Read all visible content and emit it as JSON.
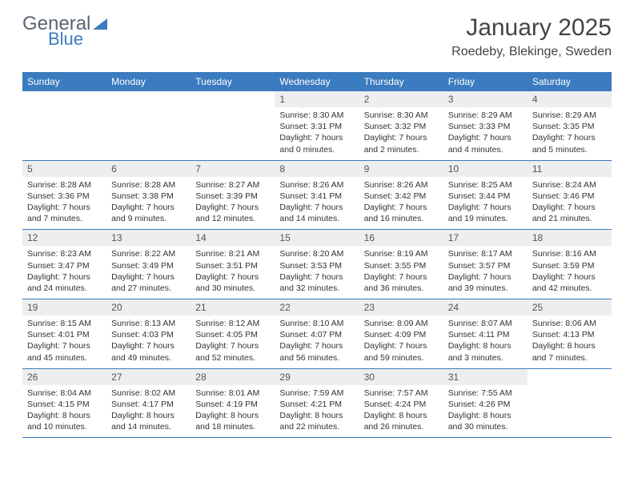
{
  "brand": {
    "part1": "General",
    "part2": "Blue"
  },
  "title": "January 2025",
  "location": "Roedeby, Blekinge, Sweden",
  "colors": {
    "header_bg": "#3b7bbf",
    "header_text": "#ffffff",
    "daynum_bg": "#eceeef",
    "border": "#3b7bbf",
    "text": "#333333",
    "logo_gray": "#5a6570",
    "logo_blue": "#3b7bbf"
  },
  "weekdays": [
    "Sunday",
    "Monday",
    "Tuesday",
    "Wednesday",
    "Thursday",
    "Friday",
    "Saturday"
  ],
  "weeks": [
    [
      null,
      null,
      null,
      {
        "n": "1",
        "sr": "8:30 AM",
        "ss": "3:31 PM",
        "dl": "7 hours and 0 minutes."
      },
      {
        "n": "2",
        "sr": "8:30 AM",
        "ss": "3:32 PM",
        "dl": "7 hours and 2 minutes."
      },
      {
        "n": "3",
        "sr": "8:29 AM",
        "ss": "3:33 PM",
        "dl": "7 hours and 4 minutes."
      },
      {
        "n": "4",
        "sr": "8:29 AM",
        "ss": "3:35 PM",
        "dl": "7 hours and 5 minutes."
      }
    ],
    [
      {
        "n": "5",
        "sr": "8:28 AM",
        "ss": "3:36 PM",
        "dl": "7 hours and 7 minutes."
      },
      {
        "n": "6",
        "sr": "8:28 AM",
        "ss": "3:38 PM",
        "dl": "7 hours and 9 minutes."
      },
      {
        "n": "7",
        "sr": "8:27 AM",
        "ss": "3:39 PM",
        "dl": "7 hours and 12 minutes."
      },
      {
        "n": "8",
        "sr": "8:26 AM",
        "ss": "3:41 PM",
        "dl": "7 hours and 14 minutes."
      },
      {
        "n": "9",
        "sr": "8:26 AM",
        "ss": "3:42 PM",
        "dl": "7 hours and 16 minutes."
      },
      {
        "n": "10",
        "sr": "8:25 AM",
        "ss": "3:44 PM",
        "dl": "7 hours and 19 minutes."
      },
      {
        "n": "11",
        "sr": "8:24 AM",
        "ss": "3:46 PM",
        "dl": "7 hours and 21 minutes."
      }
    ],
    [
      {
        "n": "12",
        "sr": "8:23 AM",
        "ss": "3:47 PM",
        "dl": "7 hours and 24 minutes."
      },
      {
        "n": "13",
        "sr": "8:22 AM",
        "ss": "3:49 PM",
        "dl": "7 hours and 27 minutes."
      },
      {
        "n": "14",
        "sr": "8:21 AM",
        "ss": "3:51 PM",
        "dl": "7 hours and 30 minutes."
      },
      {
        "n": "15",
        "sr": "8:20 AM",
        "ss": "3:53 PM",
        "dl": "7 hours and 32 minutes."
      },
      {
        "n": "16",
        "sr": "8:19 AM",
        "ss": "3:55 PM",
        "dl": "7 hours and 36 minutes."
      },
      {
        "n": "17",
        "sr": "8:17 AM",
        "ss": "3:57 PM",
        "dl": "7 hours and 39 minutes."
      },
      {
        "n": "18",
        "sr": "8:16 AM",
        "ss": "3:59 PM",
        "dl": "7 hours and 42 minutes."
      }
    ],
    [
      {
        "n": "19",
        "sr": "8:15 AM",
        "ss": "4:01 PM",
        "dl": "7 hours and 45 minutes."
      },
      {
        "n": "20",
        "sr": "8:13 AM",
        "ss": "4:03 PM",
        "dl": "7 hours and 49 minutes."
      },
      {
        "n": "21",
        "sr": "8:12 AM",
        "ss": "4:05 PM",
        "dl": "7 hours and 52 minutes."
      },
      {
        "n": "22",
        "sr": "8:10 AM",
        "ss": "4:07 PM",
        "dl": "7 hours and 56 minutes."
      },
      {
        "n": "23",
        "sr": "8:09 AM",
        "ss": "4:09 PM",
        "dl": "7 hours and 59 minutes."
      },
      {
        "n": "24",
        "sr": "8:07 AM",
        "ss": "4:11 PM",
        "dl": "8 hours and 3 minutes."
      },
      {
        "n": "25",
        "sr": "8:06 AM",
        "ss": "4:13 PM",
        "dl": "8 hours and 7 minutes."
      }
    ],
    [
      {
        "n": "26",
        "sr": "8:04 AM",
        "ss": "4:15 PM",
        "dl": "8 hours and 10 minutes."
      },
      {
        "n": "27",
        "sr": "8:02 AM",
        "ss": "4:17 PM",
        "dl": "8 hours and 14 minutes."
      },
      {
        "n": "28",
        "sr": "8:01 AM",
        "ss": "4:19 PM",
        "dl": "8 hours and 18 minutes."
      },
      {
        "n": "29",
        "sr": "7:59 AM",
        "ss": "4:21 PM",
        "dl": "8 hours and 22 minutes."
      },
      {
        "n": "30",
        "sr": "7:57 AM",
        "ss": "4:24 PM",
        "dl": "8 hours and 26 minutes."
      },
      {
        "n": "31",
        "sr": "7:55 AM",
        "ss": "4:26 PM",
        "dl": "8 hours and 30 minutes."
      },
      null
    ]
  ],
  "labels": {
    "sunrise": "Sunrise:",
    "sunset": "Sunset:",
    "daylight": "Daylight:"
  }
}
